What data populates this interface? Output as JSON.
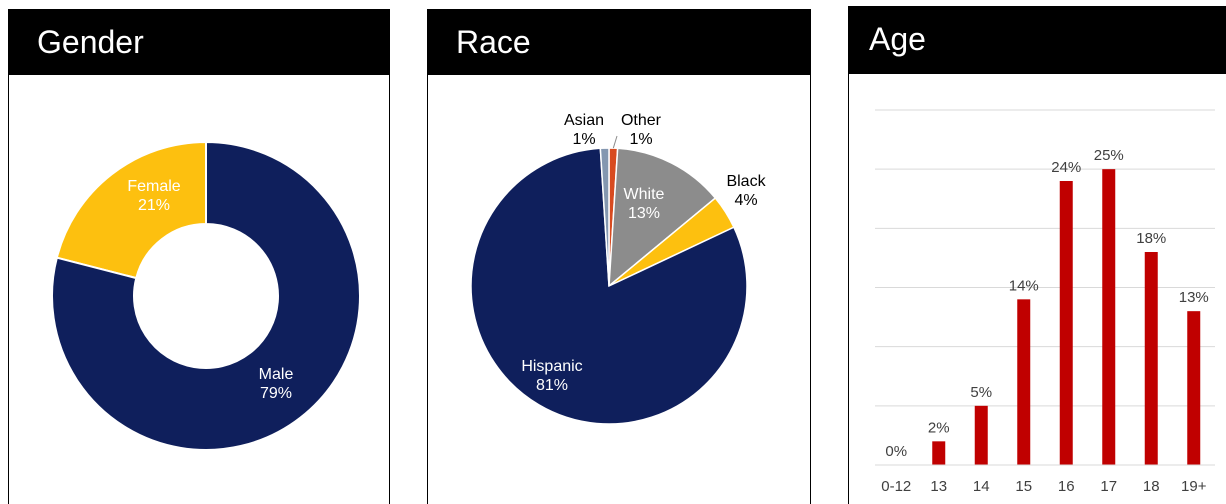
{
  "chart_data": [
    {
      "type": "pie",
      "title": "Gender",
      "donut": true,
      "categories": [
        "Female",
        "Male"
      ],
      "values": [
        21,
        79
      ],
      "value_labels": [
        "21%",
        "79%"
      ],
      "colors": [
        "#FDC00F",
        "#0F1F5C"
      ],
      "label_colors": [
        "#ffffff",
        "#ffffff"
      ]
    },
    {
      "type": "pie",
      "title": "Race",
      "donut": false,
      "categories": [
        "Hispanic",
        "White",
        "Black",
        "Asian",
        "Other"
      ],
      "values": [
        81,
        13,
        4,
        1,
        1
      ],
      "value_labels": [
        "81%",
        "13%",
        "4%",
        "1%",
        "1%"
      ],
      "colors": [
        "#0F1F5C",
        "#8C8C8C",
        "#FDC00F",
        "#8497B0",
        "#D84B20"
      ],
      "label_colors": [
        "#ffffff",
        "#ffffff",
        "#000000",
        "#000000",
        "#000000"
      ]
    },
    {
      "type": "bar",
      "title": "Age",
      "categories": [
        "0-12",
        "13",
        "14",
        "15",
        "16",
        "17",
        "18",
        "19+"
      ],
      "values": [
        0,
        2,
        5,
        14,
        24,
        25,
        18,
        13
      ],
      "value_labels": [
        "0%",
        "2%",
        "5%",
        "14%",
        "24%",
        "25%",
        "18%",
        "13%"
      ],
      "color": "#C00000",
      "ylim": [
        0,
        30
      ],
      "grid": true
    }
  ]
}
